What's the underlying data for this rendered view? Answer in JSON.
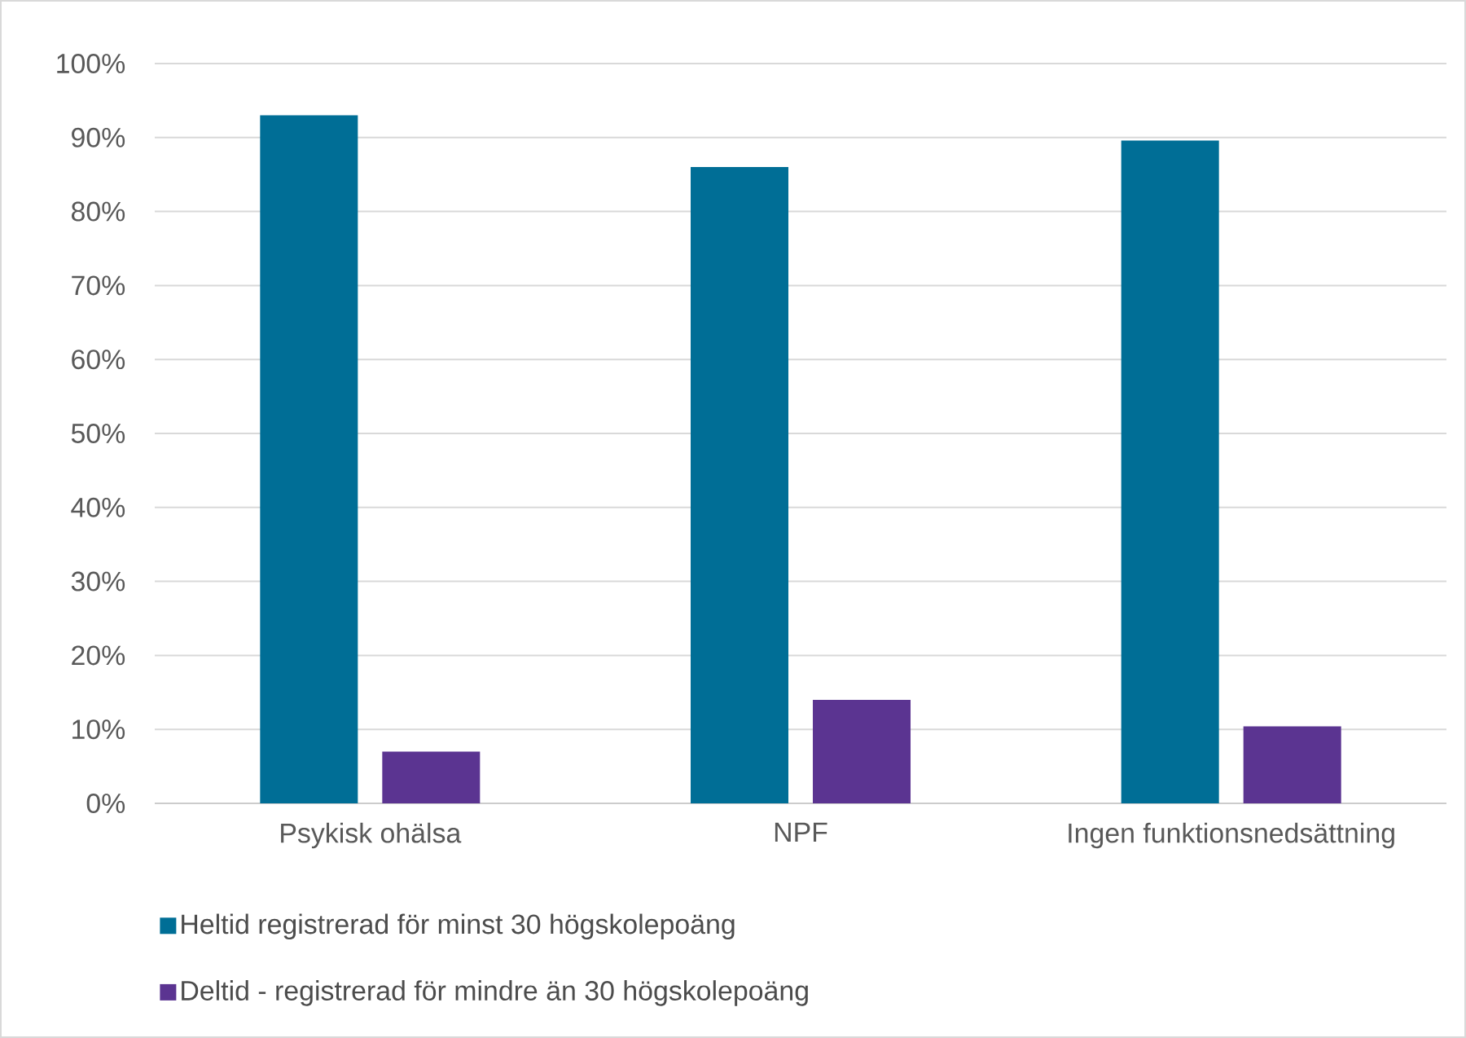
{
  "chart_data": {
    "type": "bar",
    "categories": [
      "Psykisk ohälsa",
      "NPF",
      "Ingen funktionsnedsättning"
    ],
    "series": [
      {
        "name": "Heltid registrerad för minst 30 högskolepoäng",
        "color": "#006e96",
        "values": [
          93,
          86,
          89.6
        ]
      },
      {
        "name": "Deltid - registrerad för mindre än 30 högskolepoäng",
        "color": "#5b3491",
        "values": [
          7,
          14,
          10.4
        ]
      }
    ],
    "ylim": [
      0,
      100
    ],
    "yticks": [
      {
        "value": 0,
        "label": "0%"
      },
      {
        "value": 10,
        "label": "10%"
      },
      {
        "value": 20,
        "label": "20%"
      },
      {
        "value": 30,
        "label": "30%"
      },
      {
        "value": 40,
        "label": "40%"
      },
      {
        "value": 50,
        "label": "50%"
      },
      {
        "value": 60,
        "label": "60%"
      },
      {
        "value": 70,
        "label": "70%"
      },
      {
        "value": 80,
        "label": "80%"
      },
      {
        "value": 90,
        "label": "90%"
      },
      {
        "value": 100,
        "label": "100%"
      }
    ],
    "grid": "y",
    "legend": "bottom"
  }
}
